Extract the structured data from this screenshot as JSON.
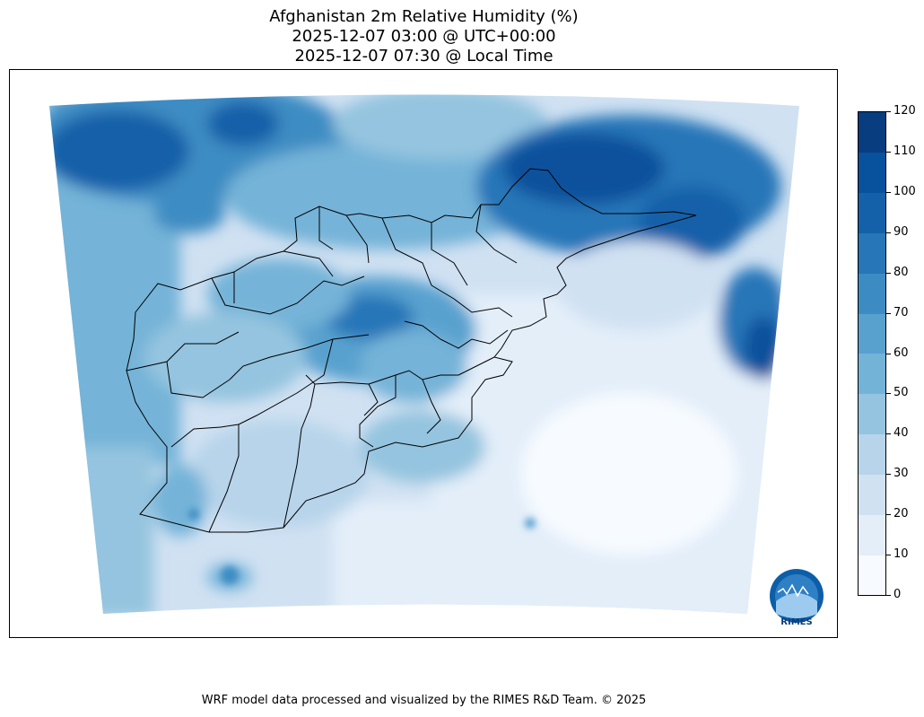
{
  "titles": {
    "line1": "Afghanistan 2m Relative Humidity (%)",
    "line2": "2025-12-07 03:00 @ UTC+00:00",
    "line3": "2025-12-07 07:30 @ Local Time"
  },
  "colorbar": {
    "ticks": [
      "0",
      "10",
      "20",
      "30",
      "40",
      "50",
      "60",
      "70",
      "80",
      "90",
      "100",
      "110",
      "120"
    ],
    "colors": [
      "#f7fbff",
      "#e3eef9",
      "#d0e1f2",
      "#b7d4ea",
      "#94c4df",
      "#74b3d8",
      "#58a1cf",
      "#3c8cc3",
      "#2676b8",
      "#1561a9",
      "#08519c",
      "#083d7f"
    ]
  },
  "logo": {
    "text": "RIMES"
  },
  "footer": "WRF model data processed and visualized by the RIMES R&D Team. © 2025"
}
